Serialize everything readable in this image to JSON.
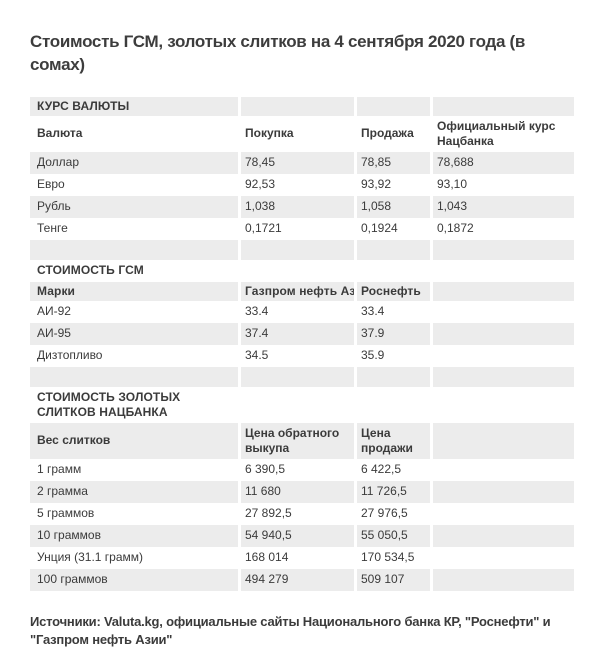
{
  "page": {
    "title": "Стоимость ГСМ, золотых слитков на 4 сентября 2020 года (в сомах)",
    "footer": "Источники: Valuta.kg, официальные сайты Национального банка КР, \"Роснефти\" и \"Газпром нефть Азии\""
  },
  "colors": {
    "background": "#ffffff",
    "stripe": "#ececec",
    "text": "#3b3b3b"
  },
  "chart_data": [
    {
      "type": "table",
      "title": "КУРС ВАЛЮТЫ",
      "columns": [
        "Валюта",
        "Покупка",
        "Продажа",
        "Официальный курс Нацбанка"
      ],
      "rows": [
        [
          "Доллар",
          "78,45",
          "78,85",
          "78,688"
        ],
        [
          "Евро",
          "92,53",
          "93,92",
          "93,10"
        ],
        [
          "Рубль",
          "1,038",
          "1,058",
          "1,043"
        ],
        [
          "Тенге",
          "0,1721",
          "0,1924",
          "0,1872"
        ]
      ]
    },
    {
      "type": "table",
      "title": "СТОИМОСТЬ ГСМ",
      "columns": [
        "Марки",
        "Газпром нефть Азия",
        "Роснефть"
      ],
      "rows": [
        [
          "АИ-92",
          "33.4",
          "33.4"
        ],
        [
          "АИ-95",
          "37.4",
          "37.9"
        ],
        [
          "Дизтопливо",
          "34.5",
          "35.9"
        ]
      ]
    },
    {
      "type": "table",
      "title": "СТОИМОСТЬ ЗОЛОТЫХ СЛИТКОВ НАЦБАНКА",
      "columns": [
        "Вес слитков",
        "Цена обратного выкупа",
        "Цена продажи"
      ],
      "rows": [
        [
          "1 грамм",
          "6 390,5",
          "6 422,5"
        ],
        [
          "2 грамма",
          "11 680",
          "11 726,5"
        ],
        [
          "5 граммов",
          "27 892,5",
          "27 976,5"
        ],
        [
          "10 граммов",
          "54 940,5",
          "55 050,5"
        ],
        [
          "Унция (31.1 грамм)",
          "168 014",
          "170 534,5"
        ],
        [
          "100 граммов",
          "494 279",
          "509 107"
        ]
      ]
    }
  ]
}
